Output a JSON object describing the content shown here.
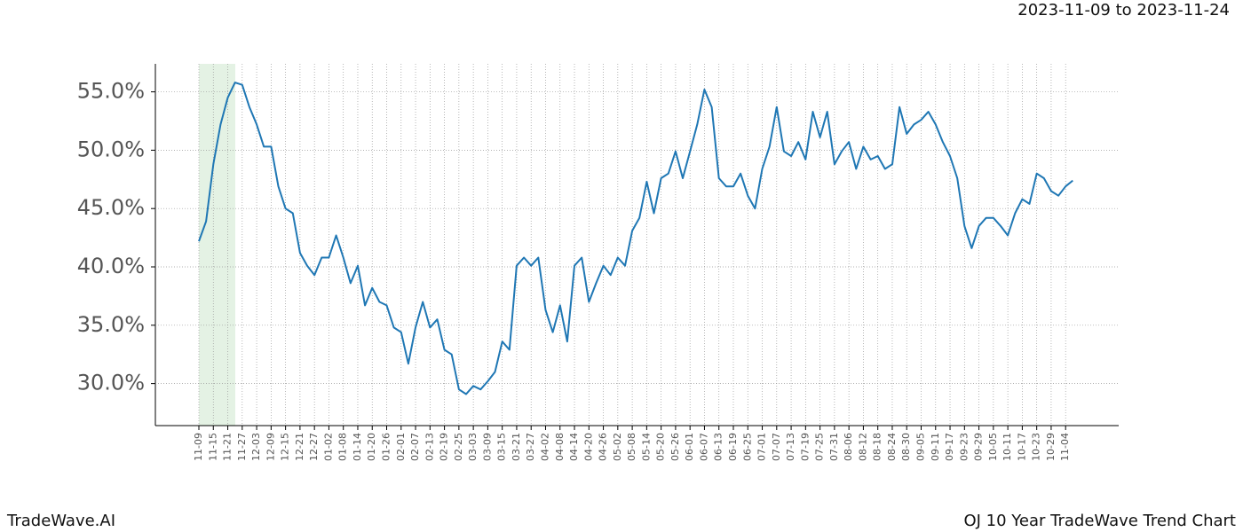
{
  "chart_data": {
    "type": "line",
    "title": "2023-11-09 to 2023-11-24",
    "footer_left": "TradeWave.AI",
    "footer_right": "OJ 10 Year TradeWave Trend Chart",
    "color": "#1f77b4",
    "grid": true,
    "categories": [
      "11-09",
      null,
      "11-15",
      null,
      "11-21",
      null,
      "11-27",
      null,
      "12-03",
      null,
      "12-09",
      null,
      "12-15",
      null,
      "12-21",
      null,
      "12-27",
      null,
      "01-02",
      null,
      "01-08",
      null,
      "01-14",
      null,
      "01-20",
      null,
      "01-26",
      null,
      "02-01",
      null,
      "02-07",
      null,
      "02-13",
      null,
      "02-19",
      null,
      "02-25",
      null,
      "03-03",
      null,
      "03-09",
      null,
      "03-15",
      null,
      "03-21",
      null,
      "03-27",
      null,
      "04-02",
      null,
      "04-08",
      null,
      "04-14",
      null,
      "04-20",
      null,
      "04-26",
      null,
      "05-02",
      null,
      "05-08",
      null,
      "05-14",
      null,
      "05-20",
      null,
      "05-26",
      null,
      "06-01",
      null,
      "06-07",
      null,
      "06-13",
      null,
      "06-19",
      null,
      "06-25",
      null,
      "07-01",
      null,
      "07-07",
      null,
      "07-13",
      null,
      "07-19",
      null,
      "07-25",
      null,
      "07-31",
      null,
      "08-06",
      null,
      "08-12",
      null,
      "08-18",
      null,
      "08-24",
      null,
      "08-30",
      null,
      "09-05",
      null,
      "09-11",
      null,
      "09-17",
      null,
      "09-23",
      null,
      "09-29",
      null,
      "10-05",
      null,
      "10-11",
      null,
      "10-17",
      null,
      "10-23",
      null,
      "10-29",
      null,
      "11-04",
      null
    ],
    "values": [
      42.2,
      43.9,
      48.8,
      52.2,
      54.5,
      55.8,
      55.6,
      53.7,
      52.2,
      50.3,
      50.3,
      46.9,
      45.0,
      44.6,
      41.2,
      40.1,
      39.3,
      40.8,
      40.8,
      42.7,
      40.8,
      38.6,
      40.1,
      36.7,
      38.2,
      37.0,
      36.7,
      34.8,
      34.4,
      31.7,
      34.8,
      37.0,
      34.8,
      35.5,
      32.9,
      32.5,
      29.5,
      29.1,
      29.8,
      29.5,
      30.2,
      31.0,
      33.6,
      32.9,
      40.1,
      40.8,
      40.1,
      40.8,
      36.3,
      34.4,
      36.7,
      33.6,
      40.1,
      40.8,
      37.0,
      38.6,
      40.1,
      39.3,
      40.8,
      40.1,
      43.1,
      44.2,
      47.3,
      44.6,
      47.6,
      48.0,
      49.9,
      47.6,
      49.9,
      52.2,
      55.2,
      53.7,
      47.6,
      46.9,
      46.9,
      48.0,
      46.1,
      45.0,
      48.4,
      50.3,
      53.7,
      49.9,
      49.5,
      50.7,
      49.2,
      53.3,
      51.1,
      53.3,
      48.8,
      49.9,
      50.7,
      48.4,
      50.3,
      49.2,
      49.5,
      48.4,
      48.8,
      53.7,
      51.4,
      52.2,
      52.6,
      53.3,
      52.2,
      50.7,
      49.5,
      47.6,
      43.5,
      41.6,
      43.5,
      44.2,
      44.2,
      43.5,
      42.7,
      44.6,
      45.8,
      45.4,
      48.0,
      47.6,
      46.5,
      46.1,
      46.9,
      47.4
    ],
    "ylim": [
      26.4,
      57.4
    ],
    "yticks": [
      {
        "value": 30,
        "label": "30.0%"
      },
      {
        "value": 35,
        "label": "35.0%"
      },
      {
        "value": 40,
        "label": "40.0%"
      },
      {
        "value": 45,
        "label": "45.0%"
      },
      {
        "value": 50,
        "label": "50.0%"
      },
      {
        "value": 55,
        "label": "55.0%"
      }
    ]
  }
}
